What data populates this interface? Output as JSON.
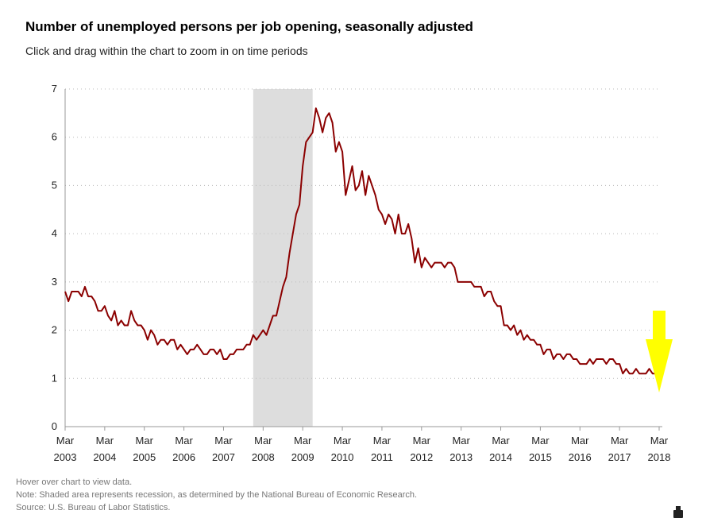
{
  "header": {
    "title": "Number of unemployed persons per job opening, seasonally adjusted",
    "subtitle": "Click and drag within the chart to zoom in on time periods"
  },
  "footer": {
    "hover_note": "Hover over chart to view data.",
    "recession_note": "Note: Shaded area represents recession, as determined by the National Bureau of Economic Research.",
    "source": "Source: U.S. Bureau of Labor Statistics."
  },
  "chart_data": {
    "type": "line",
    "title": "Number of unemployed persons per job opening, seasonally adjusted",
    "xlabel": "",
    "ylabel": "",
    "ylim": [
      0,
      7
    ],
    "yticks": [
      0,
      1,
      2,
      3,
      4,
      5,
      6,
      7
    ],
    "grid": true,
    "x_start": "2003-03",
    "x_end": "2018-03",
    "x_tick_labels": [
      {
        "month": "Mar",
        "year": "2003"
      },
      {
        "month": "Mar",
        "year": "2004"
      },
      {
        "month": "Mar",
        "year": "2005"
      },
      {
        "month": "Mar",
        "year": "2006"
      },
      {
        "month": "Mar",
        "year": "2007"
      },
      {
        "month": "Mar",
        "year": "2008"
      },
      {
        "month": "Mar",
        "year": "2009"
      },
      {
        "month": "Mar",
        "year": "2010"
      },
      {
        "month": "Mar",
        "year": "2011"
      },
      {
        "month": "Mar",
        "year": "2012"
      },
      {
        "month": "Mar",
        "year": "2013"
      },
      {
        "month": "Mar",
        "year": "2014"
      },
      {
        "month": "Mar",
        "year": "2015"
      },
      {
        "month": "Mar",
        "year": "2016"
      },
      {
        "month": "Mar",
        "year": "2017"
      },
      {
        "month": "Mar",
        "year": "2018"
      }
    ],
    "recession": {
      "start": "2007-12",
      "end": "2009-06"
    },
    "series": [
      {
        "name": "Unemployed persons per job opening",
        "color": "#8b0000",
        "values": [
          2.8,
          2.6,
          2.8,
          2.8,
          2.8,
          2.7,
          2.9,
          2.7,
          2.7,
          2.6,
          2.4,
          2.4,
          2.5,
          2.3,
          2.2,
          2.4,
          2.1,
          2.2,
          2.1,
          2.1,
          2.4,
          2.2,
          2.1,
          2.1,
          2.0,
          1.8,
          2.0,
          1.9,
          1.7,
          1.8,
          1.8,
          1.7,
          1.8,
          1.8,
          1.6,
          1.7,
          1.6,
          1.5,
          1.6,
          1.6,
          1.7,
          1.6,
          1.5,
          1.5,
          1.6,
          1.6,
          1.5,
          1.6,
          1.4,
          1.4,
          1.5,
          1.5,
          1.6,
          1.6,
          1.6,
          1.7,
          1.7,
          1.9,
          1.8,
          1.9,
          2.0,
          1.9,
          2.1,
          2.3,
          2.3,
          2.6,
          2.9,
          3.1,
          3.6,
          4.0,
          4.4,
          4.6,
          5.4,
          5.9,
          6.0,
          6.1,
          6.6,
          6.4,
          6.1,
          6.4,
          6.5,
          6.3,
          5.7,
          5.9,
          5.7,
          4.8,
          5.1,
          5.4,
          4.9,
          5.0,
          5.3,
          4.8,
          5.2,
          5.0,
          4.8,
          4.5,
          4.4,
          4.2,
          4.4,
          4.3,
          4.0,
          4.4,
          4.0,
          4.0,
          4.2,
          3.9,
          3.4,
          3.7,
          3.3,
          3.5,
          3.4,
          3.3,
          3.4,
          3.4,
          3.4,
          3.3,
          3.4,
          3.4,
          3.3,
          3.0,
          3.0,
          3.0,
          3.0,
          3.0,
          2.9,
          2.9,
          2.9,
          2.7,
          2.8,
          2.8,
          2.6,
          2.5,
          2.5,
          2.1,
          2.1,
          2.0,
          2.1,
          1.9,
          2.0,
          1.8,
          1.9,
          1.8,
          1.8,
          1.7,
          1.7,
          1.5,
          1.6,
          1.6,
          1.4,
          1.5,
          1.5,
          1.4,
          1.5,
          1.5,
          1.4,
          1.4,
          1.3,
          1.3,
          1.3,
          1.4,
          1.3,
          1.4,
          1.4,
          1.4,
          1.3,
          1.4,
          1.4,
          1.3,
          1.3,
          1.1,
          1.2,
          1.1,
          1.1,
          1.2,
          1.1,
          1.1,
          1.1,
          1.2,
          1.1,
          1.1,
          1.0
        ]
      }
    ],
    "annotation": {
      "type": "arrow",
      "color": "#ffff00",
      "points_to": "2018-03"
    }
  }
}
